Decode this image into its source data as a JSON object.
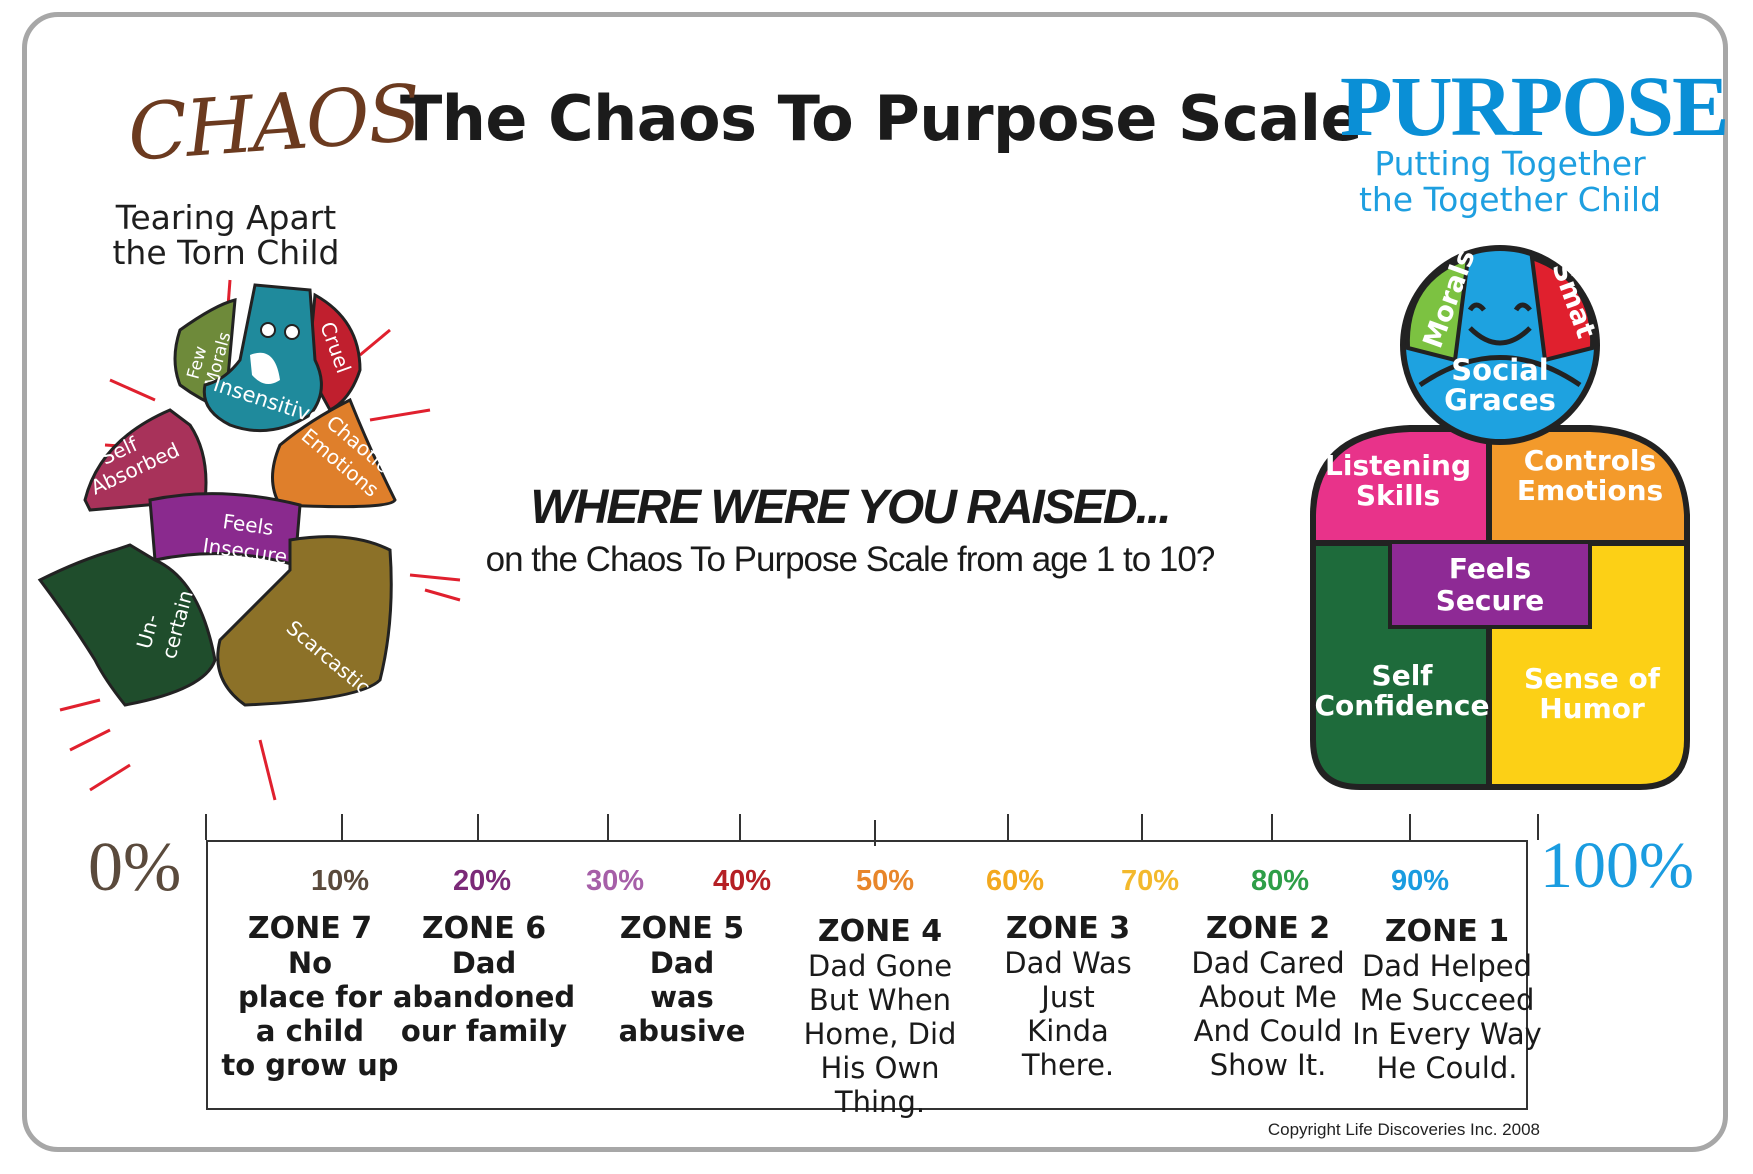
{
  "title": "The Chaos To Purpose Scale",
  "chaos": {
    "word": "CHAOS",
    "tagline_line1": "Tearing Apart",
    "tagline_line2": "the Torn Child",
    "pieces": {
      "few_morals_1": "Few",
      "few_morals_2": "Morals",
      "cruel": "Cruel",
      "insensitive": "Insensitive",
      "self_absorbed_1": "Self",
      "self_absorbed_2": "Absorbed",
      "chaotic_emotions_1": "Chaotic",
      "chaotic_emotions_2": "Emotions",
      "feels_insecure_1": "Feels",
      "feels_insecure_2": "Insecure",
      "uncertain_1": "Un-",
      "uncertain_2": "certain",
      "scarcastic": "Scarcastic"
    }
  },
  "purpose": {
    "word": "PURPOSE",
    "tagline_line1": "Putting Together",
    "tagline_line2": "the Together Child",
    "pieces": {
      "morals": "Morals",
      "smart": "Smat",
      "social_graces_1": "Social",
      "social_graces_2": "Graces",
      "listening_skills_1": "Listening",
      "listening_skills_2": "Skills",
      "controls_emotions_1": "Controls",
      "controls_emotions_2": "Emotions",
      "feels_secure_1": "Feels",
      "feels_secure_2": "Secure",
      "self_confidence_1": "Self",
      "self_confidence_2": "Confidence",
      "sense_of_humor_1": "Sense of",
      "sense_of_humor_2": "Humor"
    }
  },
  "question": {
    "main": "WHERE WERE YOU RAISED...",
    "sub": "on the Chaos To Purpose Scale from age 1 to 10?"
  },
  "scale": {
    "start_label": "0%",
    "end_label": "100%",
    "percent_labels": [
      {
        "text": "10%",
        "color": "#5a4a3c"
      },
      {
        "text": "20%",
        "color": "#7b2a78"
      },
      {
        "text": "30%",
        "color": "#a65fa8"
      },
      {
        "text": "40%",
        "color": "#b52025"
      },
      {
        "text": "50%",
        "color": "#e8862a"
      },
      {
        "text": "60%",
        "color": "#f3a91f"
      },
      {
        "text": "70%",
        "color": "#f3b92c"
      },
      {
        "text": "80%",
        "color": "#2e9e48"
      },
      {
        "text": "90%",
        "color": "#1a9ce0"
      }
    ],
    "zones": [
      {
        "title": "ZONE 7",
        "desc": "No\nplace for\na child\nto grow up"
      },
      {
        "title": "ZONE 6",
        "desc": "Dad\nabandoned\nour family"
      },
      {
        "title": "ZONE 5",
        "desc": "Dad\nwas\nabusive"
      },
      {
        "title": "ZONE 4",
        "desc": "Dad Gone\nBut When\nHome, Did\nHis Own\nThing."
      },
      {
        "title": "ZONE 3",
        "desc": "Dad Was\nJust\nKinda\nThere."
      },
      {
        "title": "ZONE 2",
        "desc": "Dad Cared\nAbout Me\nAnd Could\nShow It."
      },
      {
        "title": "ZONE 1",
        "desc": "Dad Helped\nMe Succeed\nIn Every Way\nHe Could."
      }
    ]
  },
  "copyright": "Copyright Life Discoveries Inc. 2008",
  "colors": {
    "chaos_brown": "#6b3a1f",
    "purpose_blue": "#0a8fd6",
    "few_morals": "#6e8a3a",
    "cruel": "#c01f2e",
    "insensitive": "#1f8a9c",
    "self_absorbed": "#a8325a",
    "chaotic_emotions": "#df7f2b",
    "feels_insecure": "#8a2a8e",
    "uncertain": "#1f4d2c",
    "scarcastic": "#8c7128",
    "morals": "#7cc241",
    "smart": "#e0202e",
    "social_graces": "#1ea2e0",
    "listening_skills": "#e8338a",
    "controls_emotions": "#f39a2b",
    "feels_secure": "#8e2a95",
    "self_confidence": "#1e6b3b",
    "sense_of_humor": "#fcd016"
  }
}
